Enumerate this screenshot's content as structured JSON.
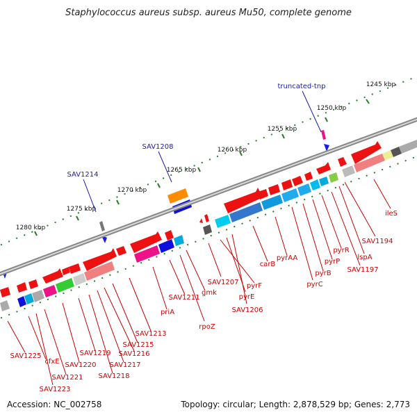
{
  "title": "Staphylococcus aureus subsp. aureus Mu50, complete genome",
  "footer": {
    "accession": "Accession: NC_002758",
    "topology": "Topology: circular; Length: 2,878,529 bp; Genes: 2,773"
  },
  "ticks": [
    "1245 kbp",
    "1250 kbp",
    "1255 kbp",
    "1260 kbp",
    "1265 kbp",
    "1270 kbp",
    "1275 kbp",
    "1280 kbp"
  ],
  "top_labels": [
    "truncated-tnp",
    "SAV1208",
    "SAV1214"
  ],
  "bottom_labels": [
    "ileS",
    "SAV1194",
    "lspA",
    "SAV1197",
    "pyrR",
    "pyrP",
    "pyrB",
    "pyrC",
    "pyrAA",
    "carB",
    "SAV1206",
    "pyrE",
    "pyrF",
    "SAV1207",
    "gmk",
    "rpoZ",
    "SAV1211",
    "priA",
    "SAV1213",
    "SAV1215",
    "SAV1216",
    "SAV1217",
    "SAV1218",
    "SAV1219",
    "SAV1220",
    "SAV1221",
    "SAV1223",
    "cfxE",
    "SAV1225"
  ],
  "colors": {
    "forward_gene": "#ee1111",
    "top_label": "#1a1aa8",
    "bottom_label": "#cc0000",
    "backbone": "#888888",
    "tick": "#2a7a2a"
  }
}
